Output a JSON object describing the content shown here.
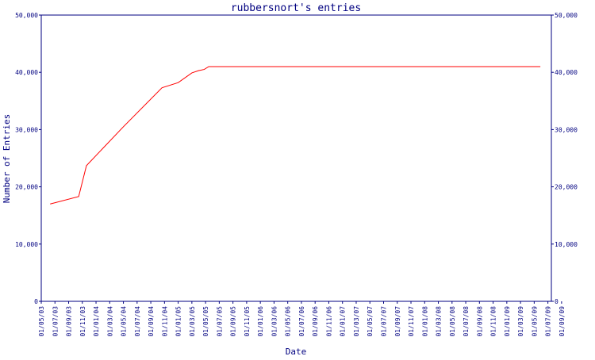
{
  "chart_data": {
    "type": "line",
    "title": "rubbersnort's entries",
    "ylabel": "Number of Entries",
    "xlabel": "Date",
    "x": [
      "10/06/03",
      "15/10/03",
      "19/11/03",
      "01/05/04",
      "20/10/04",
      "01/01/05",
      "01/03/05",
      "01/04/05",
      "25/04/05",
      "15/05/05",
      "28/05/09"
    ],
    "values": [
      17000,
      18300,
      23700,
      30500,
      37300,
      38200,
      39900,
      40300,
      40500,
      41000,
      41000
    ],
    "color": "#ff0000",
    "ylim": [
      0,
      50000
    ],
    "yticks": [
      0,
      {
        "value": 10000,
        "label": "10,000"
      },
      {
        "value": 20000,
        "label": "20,000"
      },
      {
        "value": 30000,
        "label": "30,000"
      },
      {
        "value": 40000,
        "label": "40,000"
      },
      {
        "value": 50000,
        "label": "50,000"
      }
    ],
    "xticks": [
      "01/05/03",
      "01/07/03",
      "01/09/03",
      "01/11/03",
      "01/01/04",
      "01/03/04",
      "01/05/04",
      "01/07/04",
      "01/09/04",
      "01/11/04",
      "01/01/05",
      "01/03/05",
      "01/05/05",
      "01/07/05",
      "01/09/05",
      "01/11/05",
      "01/01/06",
      "01/03/06",
      "01/05/06",
      "01/07/06",
      "01/09/06",
      "01/11/06",
      "01/01/07",
      "01/03/07",
      "01/05/07",
      "01/07/07",
      "01/09/07",
      "01/11/07",
      "01/01/08",
      "01/03/08",
      "01/05/08",
      "01/07/08",
      "01/09/08",
      "01/11/08",
      "01/01/09",
      "01/03/09",
      "01/05/09",
      "01/07/09",
      "01/09/09"
    ]
  }
}
